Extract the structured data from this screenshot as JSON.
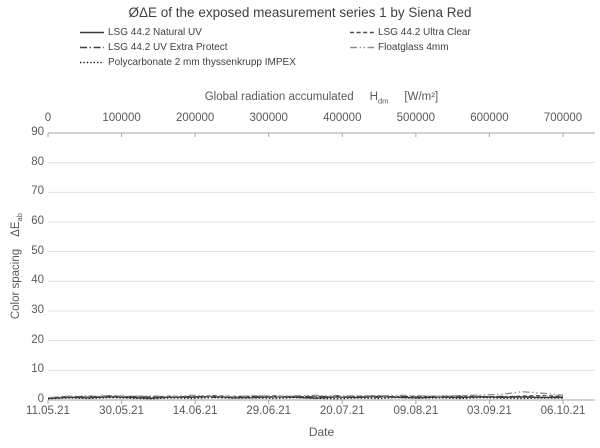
{
  "title": "ØΔE of the exposed measurement series 1 by Siena Red",
  "axis_titles": {
    "top_prefix": "Global radiation accumulated",
    "top_symbol": "H",
    "top_symbol_sub": "dm",
    "top_unit": "[W/m²]",
    "left_text": "Color spacing",
    "left_symbol": "ΔE",
    "left_symbol_sub": "ab",
    "bottom": "Date"
  },
  "chart_data": {
    "type": "line",
    "title": "ØΔE of the exposed measurement series 1 by Siena Red",
    "grid": "horizontal-light",
    "legend_position": "top",
    "top_axis": {
      "label": "Global radiation accumulated H_dm [W/m²]",
      "ticks": [
        "0",
        "100000",
        "200000",
        "300000",
        "400000",
        "500000",
        "600000",
        "700000"
      ],
      "range": [
        0,
        700000
      ]
    },
    "y_axis": {
      "label": "Color spacing ΔE_ab",
      "ticks": [
        90,
        80,
        70,
        60,
        50,
        40,
        30,
        20,
        10,
        0
      ],
      "range": [
        0,
        90
      ]
    },
    "x_axis": {
      "label": "Date",
      "ticks": [
        "11.05.21",
        "30.05.21",
        "14.06.21",
        "29.06.21",
        "20.07.21",
        "09.08.21",
        "03.09.21",
        "06.10.21"
      ]
    },
    "x_pct": [
      0,
      4,
      8,
      12,
      16,
      20,
      24,
      28,
      32,
      36,
      40,
      44,
      48,
      52,
      56,
      60,
      64,
      68,
      72,
      76,
      80,
      84,
      88,
      92,
      96,
      100
    ],
    "series": [
      {
        "name": "LSG 44.2 Natural UV",
        "line_style": "solid",
        "color": "#3a3a3a",
        "values": [
          0.5,
          0.9,
          0.7,
          1.1,
          0.8,
          0.6,
          1.0,
          0.9,
          1.2,
          0.7,
          0.8,
          1.1,
          0.9,
          0.6,
          1.0,
          0.8,
          1.2,
          0.9,
          0.7,
          1.0,
          0.8,
          1.1,
          0.9,
          1.0,
          0.8,
          0.9
        ]
      },
      {
        "name": "LSG 44.2 Ultra Clear",
        "line_style": "dashed",
        "color": "#4d4d4d",
        "values": [
          0.7,
          1.2,
          1.0,
          1.4,
          1.1,
          0.9,
          1.3,
          1.0,
          1.5,
          1.2,
          1.0,
          1.4,
          1.1,
          1.3,
          0.9,
          1.2,
          1.4,
          1.0,
          1.3,
          1.1,
          1.4,
          1.2,
          1.0,
          1.3,
          1.5,
          1.2
        ]
      },
      {
        "name": "LSG 44.2 UV Extra Protect",
        "line_style": "dash-dot",
        "color": "#404040",
        "values": [
          0.6,
          1.0,
          1.3,
          0.9,
          1.2,
          1.0,
          0.8,
          1.2,
          0.9,
          1.1,
          1.3,
          0.9,
          1.2,
          1.0,
          1.4,
          1.1,
          0.9,
          1.2,
          1.0,
          1.3,
          1.1,
          0.9,
          1.2,
          1.1,
          0.9,
          1.0
        ]
      },
      {
        "name": "Floatglass 4mm",
        "line_style": "dash-dot-dot",
        "color": "#8f8f8f",
        "values": [
          0.8,
          1.3,
          1.1,
          1.5,
          1.2,
          1.4,
          1.1,
          1.6,
          1.3,
          1.1,
          1.5,
          1.2,
          1.4,
          1.6,
          1.2,
          1.5,
          1.3,
          1.6,
          1.4,
          1.2,
          1.5,
          1.7,
          1.9,
          2.8,
          2.3,
          1.6
        ]
      },
      {
        "name": "Polycarbonate 2 mm thyssenkrupp IMPEX",
        "line_style": "dotted",
        "color": "#1f1f1f",
        "values": [
          0.4,
          0.7,
          0.5,
          0.8,
          0.6,
          0.4,
          0.7,
          0.5,
          0.8,
          0.6,
          0.7,
          0.5,
          0.8,
          0.6,
          0.4,
          0.7,
          0.5,
          0.8,
          0.6,
          0.7,
          0.5,
          0.8,
          0.6,
          0.5,
          0.7,
          0.6
        ]
      }
    ]
  },
  "colors": {
    "axis_line": "#a6a6a6",
    "gridline": "#e0e0e0",
    "tick_text": "#595959",
    "title_text": "#3f3f3f",
    "legend_text": "#404040"
  }
}
